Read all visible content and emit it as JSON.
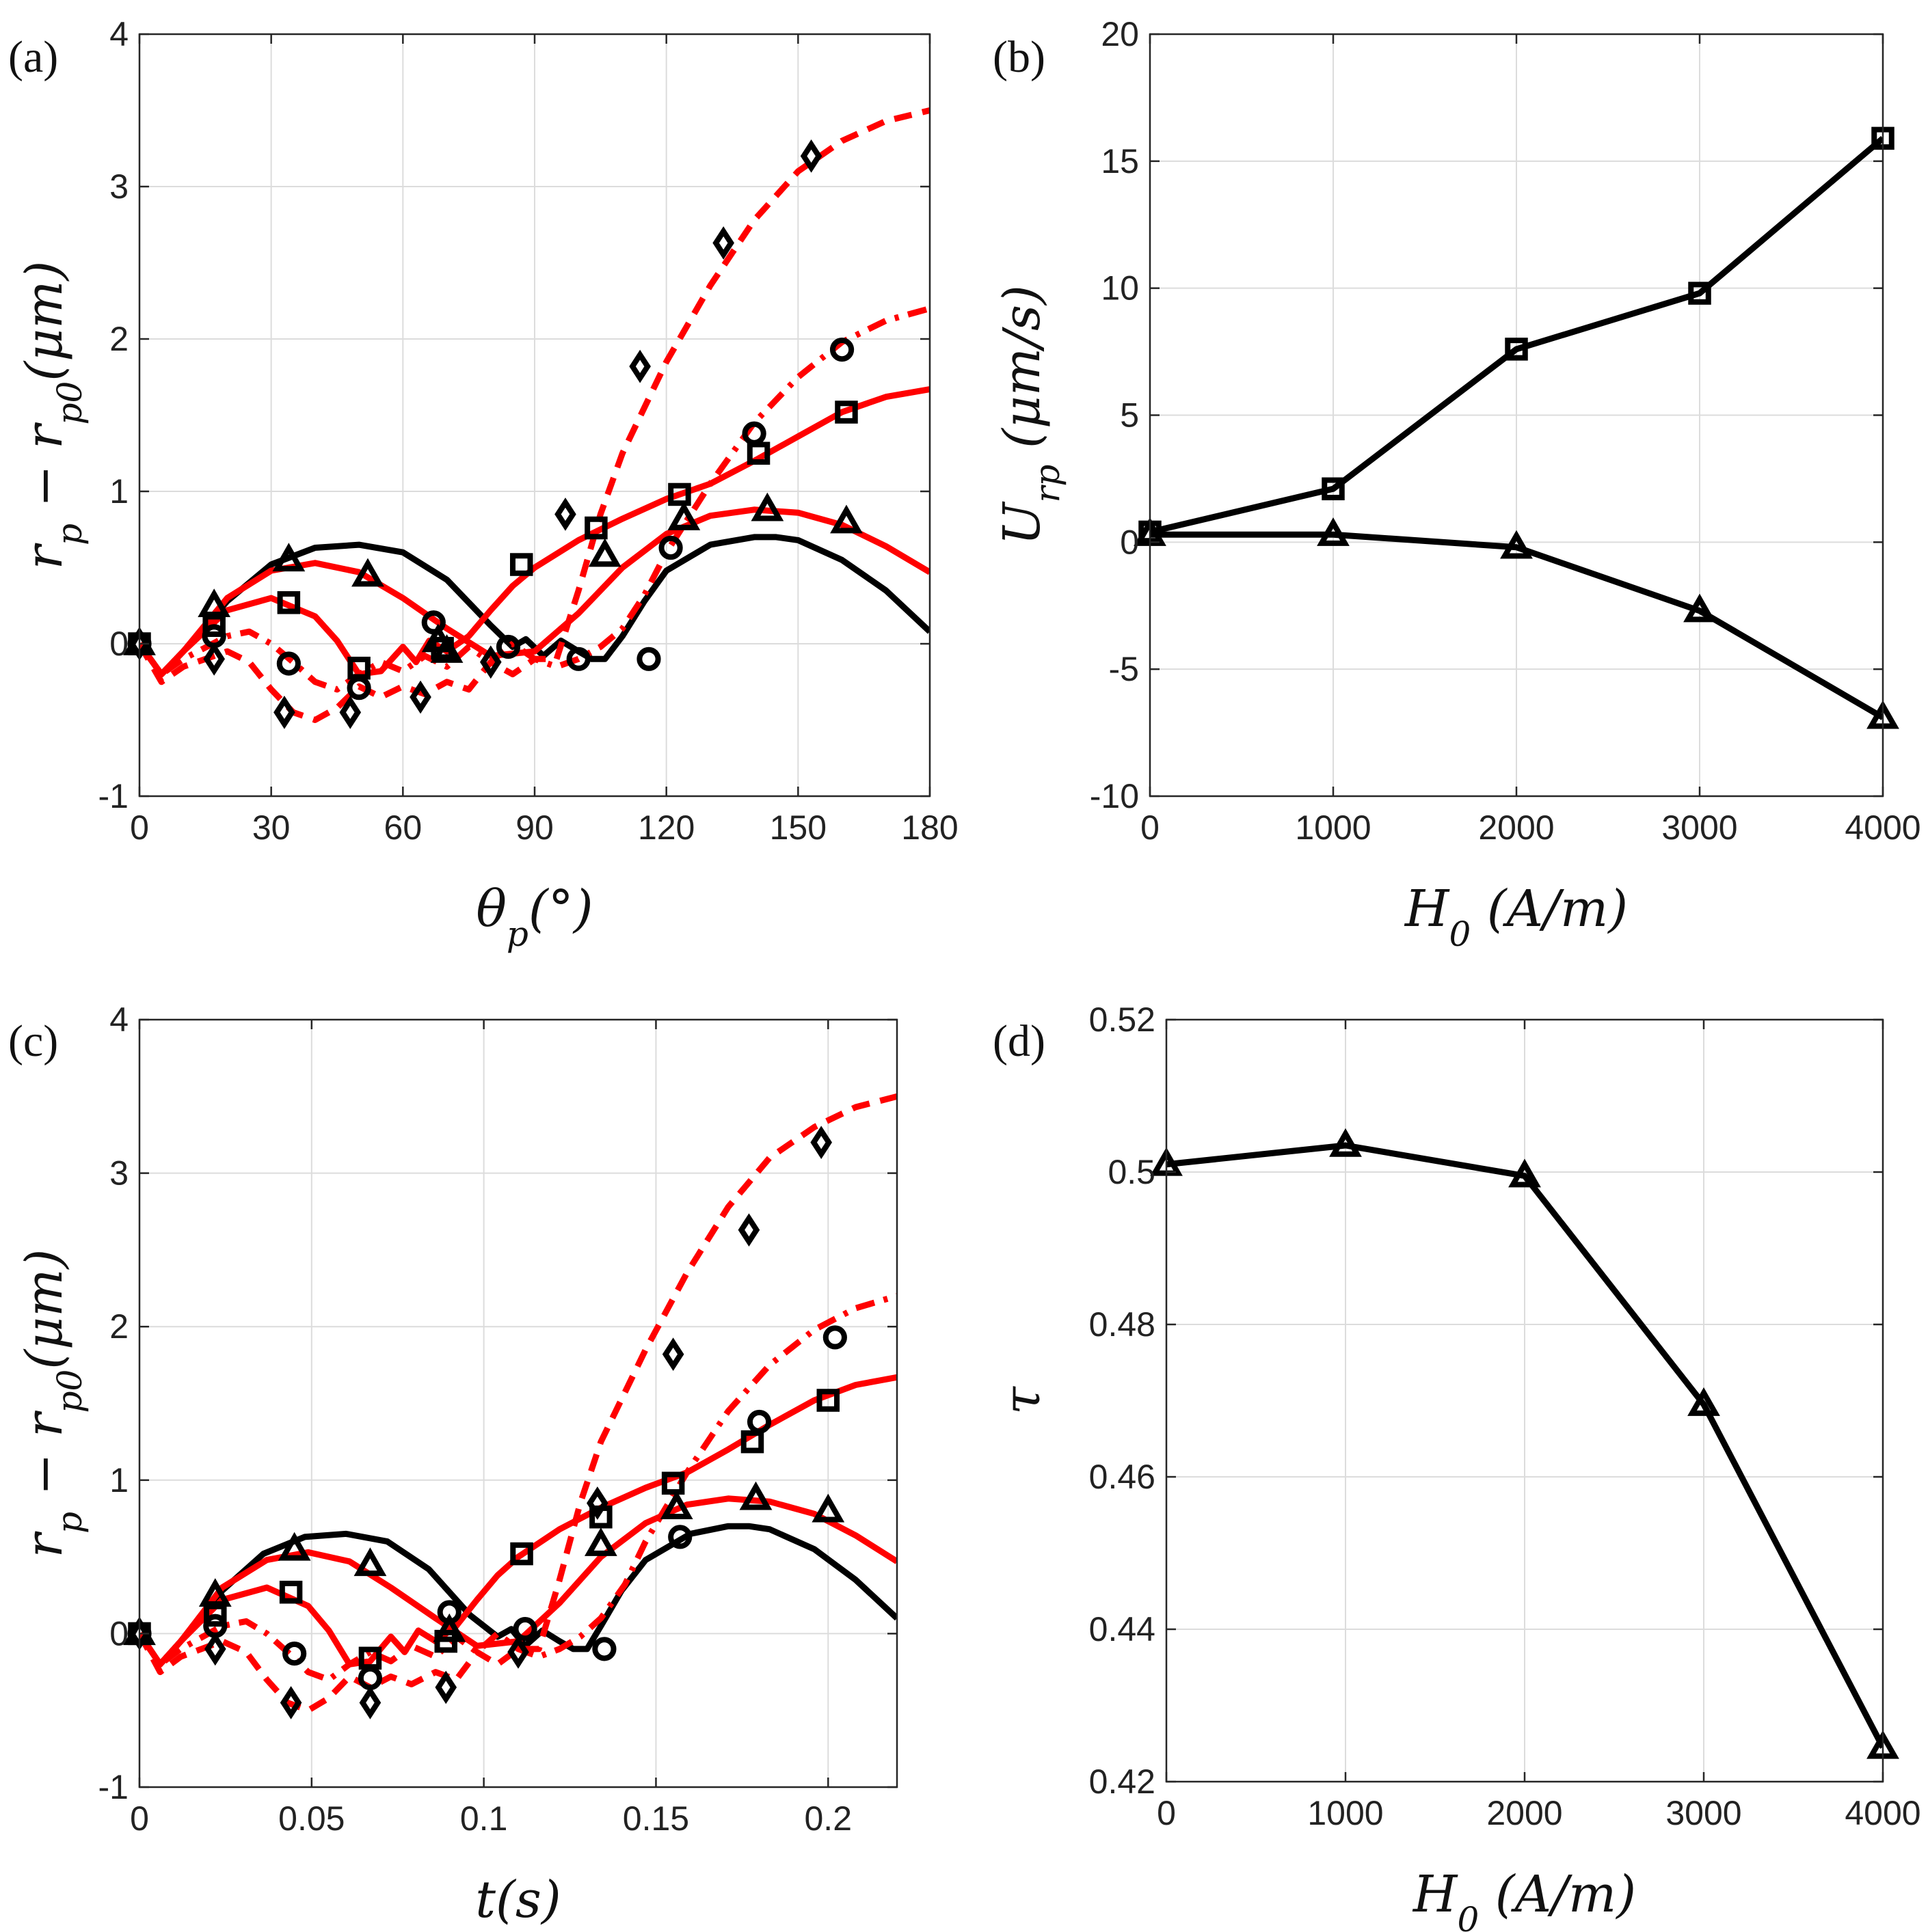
{
  "figure": {
    "panels": [
      {
        "letter": "(a)",
        "type": "line",
        "xlabel": "θp(°)",
        "ylabel": "rp − rp0(μm)",
        "xlim": [
          0,
          180
        ],
        "ylim": [
          -1,
          4
        ],
        "xticks": [
          0,
          30,
          60,
          90,
          120,
          150,
          180
        ],
        "xtick_labels": [
          "0",
          "30",
          "60",
          "90",
          "120",
          "150",
          "180"
        ],
        "yticks": [
          -1,
          0,
          1,
          2,
          3,
          4
        ],
        "ytick_labels": [
          "-1",
          "0",
          "1",
          "2",
          "3",
          "4"
        ],
        "grid": true
      },
      {
        "letter": "(b)",
        "type": "line",
        "xlabel": "H0 (A/m)",
        "ylabel": "Urp (μm/s)",
        "xlim": [
          0,
          4000
        ],
        "ylim": [
          -10,
          20
        ],
        "xticks": [
          0,
          1000,
          2000,
          3000,
          4000
        ],
        "xtick_labels": [
          "0",
          "1000",
          "2000",
          "3000",
          "4000"
        ],
        "yticks": [
          -10,
          -5,
          0,
          5,
          10,
          15,
          20
        ],
        "ytick_labels": [
          "-10",
          "-5",
          "0",
          "5",
          "10",
          "15",
          "20"
        ],
        "grid": true
      },
      {
        "letter": "(c)",
        "type": "line",
        "xlabel": "t(s)",
        "ylabel": "rp − rp0(μm)",
        "xlim": [
          0,
          0.22
        ],
        "ylim": [
          -1,
          4
        ],
        "xticks": [
          0,
          0.05,
          0.1,
          0.15,
          0.2
        ],
        "xtick_labels": [
          "0",
          "0.05",
          "0.1",
          "0.15",
          "0.2"
        ],
        "yticks": [
          -1,
          0,
          1,
          2,
          3,
          4
        ],
        "ytick_labels": [
          "-1",
          "0",
          "1",
          "2",
          "3",
          "4"
        ],
        "grid": true
      },
      {
        "letter": "(d)",
        "type": "line",
        "xlabel": "H0 (A/m)",
        "ylabel": "τ",
        "xlim": [
          0,
          4000
        ],
        "ylim": [
          0.42,
          0.52
        ],
        "xticks": [
          0,
          1000,
          2000,
          3000,
          4000
        ],
        "xtick_labels": [
          "0",
          "1000",
          "2000",
          "3000",
          "4000"
        ],
        "yticks": [
          0.42,
          0.44,
          0.46,
          0.48,
          0.5,
          0.52
        ],
        "ytick_labels": [
          "0.42",
          "0.44",
          "0.46",
          "0.48",
          "0.5",
          "0.52"
        ],
        "grid": true
      }
    ]
  },
  "chart_data": [
    {
      "type": "line",
      "panel": "(a)",
      "xlim": [
        0,
        180
      ],
      "ylim": [
        -1,
        4
      ],
      "series": [
        {
          "color": "#000000",
          "dash": "solid",
          "x": [
            0,
            5,
            10,
            20,
            30,
            40,
            50,
            60,
            70,
            80,
            85,
            88,
            92,
            96,
            100,
            103,
            106,
            110,
            115,
            120,
            130,
            140,
            145,
            150,
            160,
            170,
            180
          ],
          "y": [
            0,
            -0.2,
            -0.05,
            0.28,
            0.52,
            0.63,
            0.65,
            0.6,
            0.42,
            0.12,
            -0.02,
            0.03,
            -0.08,
            0.02,
            -0.05,
            -0.1,
            -0.1,
            0.05,
            0.28,
            0.48,
            0.65,
            0.7,
            0.7,
            0.68,
            0.55,
            0.35,
            0.08
          ]
        },
        {
          "color": "#ff0000",
          "dash": "solid",
          "x": [
            0,
            5,
            10,
            20,
            30,
            40,
            50,
            60,
            70,
            80,
            90,
            100,
            110,
            120,
            130,
            140,
            150,
            160,
            170,
            180
          ],
          "y": [
            0,
            -0.2,
            -0.05,
            0.3,
            0.48,
            0.53,
            0.47,
            0.3,
            0.1,
            -0.08,
            -0.05,
            0.2,
            0.5,
            0.72,
            0.84,
            0.88,
            0.86,
            0.78,
            0.64,
            0.47
          ]
        },
        {
          "color": "#ff0000",
          "dash": "solid",
          "x": [
            0,
            5,
            10,
            20,
            30,
            40,
            45,
            50,
            55,
            60,
            63,
            66,
            70,
            75,
            80,
            85,
            90,
            100,
            110,
            120,
            130,
            140,
            150,
            160,
            170,
            180
          ],
          "y": [
            0,
            -0.2,
            -0.05,
            0.22,
            0.3,
            0.18,
            0.02,
            -0.2,
            -0.18,
            -0.02,
            -0.12,
            0.02,
            -0.05,
            0.05,
            0.22,
            0.38,
            0.5,
            0.68,
            0.82,
            0.95,
            1.05,
            1.2,
            1.36,
            1.52,
            1.62,
            1.67
          ]
        },
        {
          "color": "#ff0000",
          "dash": "dashdot",
          "x": [
            0,
            5,
            10,
            20,
            25,
            30,
            35,
            40,
            45,
            50,
            55,
            60,
            65,
            70,
            75,
            80,
            85,
            90,
            95,
            100,
            105,
            110,
            115,
            120,
            130,
            140,
            150,
            160,
            170,
            180
          ],
          "y": [
            0,
            -0.2,
            -0.1,
            0.05,
            0.08,
            0.0,
            -0.12,
            -0.25,
            -0.3,
            -0.2,
            -0.12,
            -0.18,
            -0.08,
            -0.15,
            -0.02,
            -0.12,
            0.0,
            -0.1,
            -0.15,
            -0.1,
            -0.02,
            0.1,
            0.32,
            0.6,
            1.05,
            1.45,
            1.75,
            1.98,
            2.12,
            2.2
          ]
        },
        {
          "color": "#ff0000",
          "dash": "dashed",
          "x": [
            0,
            5,
            10,
            20,
            25,
            30,
            35,
            40,
            45,
            50,
            55,
            60,
            65,
            70,
            75,
            80,
            85,
            90,
            95,
            100,
            105,
            110,
            120,
            130,
            140,
            150,
            160,
            170,
            180
          ],
          "y": [
            0,
            -0.25,
            -0.15,
            -0.05,
            -0.12,
            -0.3,
            -0.45,
            -0.5,
            -0.42,
            -0.28,
            -0.35,
            -0.28,
            -0.33,
            -0.25,
            -0.3,
            -0.12,
            -0.2,
            -0.1,
            -0.1,
            0.35,
            0.85,
            1.25,
            1.85,
            2.35,
            2.78,
            3.1,
            3.3,
            3.43,
            3.5
          ]
        }
      ],
      "markers": [
        {
          "shape": "triangle",
          "x": [
            0,
            17,
            34,
            52,
            68,
            70,
            106,
            124,
            143,
            161
          ],
          "y": [
            0,
            0.25,
            0.55,
            0.45,
            0.02,
            -0.05,
            0.58,
            0.82,
            0.88,
            0.8
          ]
        },
        {
          "shape": "square",
          "x": [
            0,
            17,
            34,
            50,
            69,
            87,
            104,
            123,
            141,
            161
          ],
          "y": [
            0,
            0.12,
            0.27,
            -0.16,
            -0.03,
            0.52,
            0.76,
            0.98,
            1.25,
            1.52
          ]
        },
        {
          "shape": "circle",
          "x": [
            0,
            17,
            34,
            50,
            67,
            84,
            100,
            116,
            121,
            140,
            160
          ],
          "y": [
            0,
            0.05,
            -0.13,
            -0.29,
            0.14,
            -0.02,
            -0.1,
            -0.1,
            0.63,
            1.38,
            1.93
          ]
        },
        {
          "shape": "diamond",
          "x": [
            0,
            17,
            33,
            48,
            64,
            80,
            97,
            114,
            133,
            153
          ],
          "y": [
            0,
            -0.1,
            -0.45,
            -0.45,
            -0.35,
            -0.12,
            0.85,
            1.82,
            2.63,
            3.2
          ]
        }
      ]
    },
    {
      "type": "line",
      "panel": "(b)",
      "xlim": [
        0,
        4000
      ],
      "ylim": [
        -10,
        20
      ],
      "series": [
        {
          "marker": "square",
          "x": [
            0,
            1000,
            2000,
            3000,
            4000
          ],
          "y": [
            0.4,
            2.1,
            7.6,
            9.8,
            15.9
          ]
        },
        {
          "marker": "triangle",
          "x": [
            0,
            1000,
            2000,
            3000,
            4000
          ],
          "y": [
            0.3,
            0.3,
            -0.2,
            -2.7,
            -6.9
          ]
        }
      ]
    },
    {
      "type": "line",
      "panel": "(c)",
      "xlim": [
        0,
        0.22
      ],
      "ylim": [
        -1,
        4
      ],
      "series": [
        {
          "color": "#000000",
          "dash": "solid",
          "x": [
            0,
            0.006,
            0.012,
            0.024,
            0.036,
            0.048,
            0.06,
            0.072,
            0.084,
            0.096,
            0.104,
            0.108,
            0.112,
            0.117,
            0.122,
            0.126,
            0.13,
            0.134,
            0.14,
            0.147,
            0.16,
            0.171,
            0.177,
            0.183,
            0.196,
            0.208,
            0.22
          ],
          "y": [
            0,
            -0.2,
            -0.05,
            0.28,
            0.52,
            0.63,
            0.65,
            0.6,
            0.42,
            0.12,
            -0.02,
            0.03,
            -0.08,
            0.02,
            -0.05,
            -0.1,
            -0.1,
            0.05,
            0.28,
            0.48,
            0.65,
            0.7,
            0.7,
            0.68,
            0.55,
            0.35,
            0.1
          ]
        },
        {
          "color": "#ff0000",
          "dash": "solid",
          "x": [
            0,
            0.006,
            0.012,
            0.024,
            0.037,
            0.049,
            0.061,
            0.073,
            0.086,
            0.098,
            0.11,
            0.122,
            0.134,
            0.147,
            0.159,
            0.171,
            0.183,
            0.196,
            0.208,
            0.22
          ],
          "y": [
            0,
            -0.2,
            -0.05,
            0.3,
            0.48,
            0.53,
            0.47,
            0.3,
            0.1,
            -0.08,
            -0.05,
            0.2,
            0.5,
            0.72,
            0.84,
            0.88,
            0.86,
            0.78,
            0.64,
            0.47
          ]
        },
        {
          "color": "#ff0000",
          "dash": "solid",
          "x": [
            0,
            0.006,
            0.012,
            0.024,
            0.037,
            0.049,
            0.055,
            0.061,
            0.067,
            0.073,
            0.077,
            0.081,
            0.086,
            0.092,
            0.098,
            0.104,
            0.11,
            0.122,
            0.134,
            0.147,
            0.159,
            0.171,
            0.183,
            0.196,
            0.208,
            0.22
          ],
          "y": [
            0,
            -0.2,
            -0.05,
            0.22,
            0.3,
            0.18,
            0.02,
            -0.2,
            -0.18,
            -0.02,
            -0.12,
            0.02,
            -0.05,
            0.05,
            0.22,
            0.38,
            0.5,
            0.68,
            0.82,
            0.95,
            1.05,
            1.2,
            1.36,
            1.52,
            1.62,
            1.67
          ]
        },
        {
          "color": "#ff0000",
          "dash": "dashdot",
          "x": [
            0,
            0.006,
            0.012,
            0.024,
            0.031,
            0.037,
            0.043,
            0.049,
            0.055,
            0.061,
            0.067,
            0.073,
            0.079,
            0.086,
            0.092,
            0.098,
            0.104,
            0.11,
            0.116,
            0.122,
            0.128,
            0.134,
            0.141,
            0.147,
            0.159,
            0.171,
            0.183,
            0.196,
            0.208,
            0.22
          ],
          "y": [
            0,
            -0.2,
            -0.1,
            0.05,
            0.08,
            0.0,
            -0.12,
            -0.25,
            -0.3,
            -0.2,
            -0.12,
            -0.18,
            -0.08,
            -0.15,
            -0.02,
            -0.12,
            0.0,
            -0.1,
            -0.15,
            -0.1,
            -0.02,
            0.1,
            0.32,
            0.6,
            1.05,
            1.45,
            1.75,
            1.98,
            2.12,
            2.2
          ]
        },
        {
          "color": "#ff0000",
          "dash": "dashed",
          "x": [
            0,
            0.006,
            0.012,
            0.024,
            0.031,
            0.037,
            0.043,
            0.049,
            0.055,
            0.061,
            0.067,
            0.073,
            0.079,
            0.086,
            0.092,
            0.098,
            0.104,
            0.11,
            0.116,
            0.122,
            0.128,
            0.134,
            0.147,
            0.159,
            0.171,
            0.183,
            0.196,
            0.208,
            0.22
          ],
          "y": [
            0,
            -0.25,
            -0.15,
            -0.05,
            -0.12,
            -0.3,
            -0.45,
            -0.5,
            -0.42,
            -0.28,
            -0.35,
            -0.28,
            -0.33,
            -0.25,
            -0.3,
            -0.12,
            -0.2,
            -0.1,
            -0.1,
            0.35,
            0.85,
            1.25,
            1.85,
            2.35,
            2.78,
            3.1,
            3.3,
            3.43,
            3.5
          ]
        }
      ],
      "markers": [
        {
          "shape": "triangle",
          "x": [
            0,
            0.022,
            0.045,
            0.067,
            0.09,
            0.134,
            0.156,
            0.179,
            0.2
          ],
          "y": [
            0,
            0.25,
            0.55,
            0.45,
            0.02,
            0.58,
            0.82,
            0.88,
            0.8
          ]
        },
        {
          "shape": "square",
          "x": [
            0,
            0.022,
            0.044,
            0.067,
            0.089,
            0.111,
            0.134,
            0.155,
            0.178,
            0.2
          ],
          "y": [
            0,
            0.12,
            0.27,
            -0.16,
            -0.05,
            0.52,
            0.76,
            0.98,
            1.25,
            1.52
          ]
        },
        {
          "shape": "circle",
          "x": [
            0,
            0.022,
            0.045,
            0.067,
            0.09,
            0.112,
            0.135,
            0.157,
            0.18,
            0.202
          ],
          "y": [
            0,
            0.05,
            -0.13,
            -0.29,
            0.14,
            0.03,
            -0.1,
            0.63,
            1.38,
            1.93
          ]
        },
        {
          "shape": "diamond",
          "x": [
            0,
            0.022,
            0.044,
            0.067,
            0.089,
            0.11,
            0.133,
            0.155,
            0.177,
            0.198
          ],
          "y": [
            0,
            -0.1,
            -0.45,
            -0.45,
            -0.35,
            -0.12,
            0.85,
            1.82,
            2.63,
            3.2
          ]
        }
      ]
    },
    {
      "type": "line",
      "panel": "(d)",
      "xlim": [
        0,
        4000
      ],
      "ylim": [
        0.42,
        0.52
      ],
      "series": [
        {
          "marker": "triangle",
          "x": [
            0,
            1000,
            2000,
            3000,
            4000
          ],
          "y": [
            0.501,
            0.5035,
            0.4995,
            0.4695,
            0.4245
          ]
        }
      ]
    }
  ]
}
